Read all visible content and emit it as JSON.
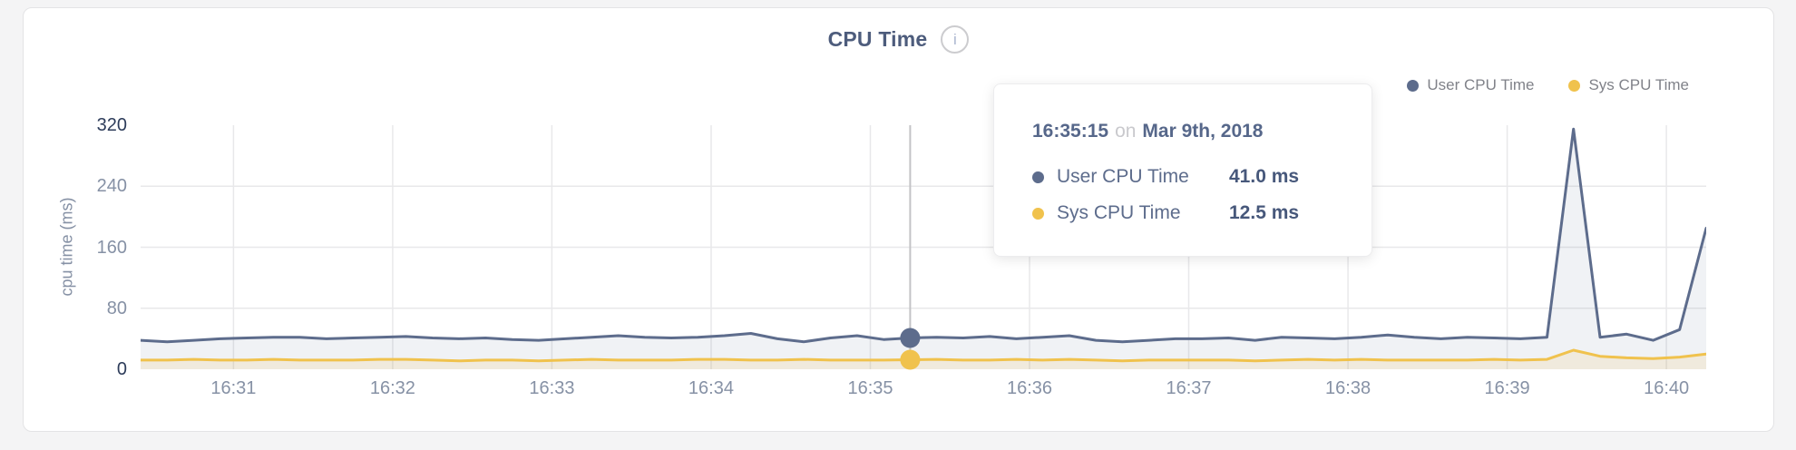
{
  "header": {
    "title": "CPU Time",
    "info_icon_glyph": "i"
  },
  "tooltip": {
    "time": "16:35:15",
    "connector": "on",
    "date": "Mar 9th, 2018",
    "rows": [
      {
        "label": "User CPU Time",
        "value": "41.0 ms",
        "color": "#5d6c8c"
      },
      {
        "label": "Sys CPU Time",
        "value": "12.5 ms",
        "color": "#f0c24d"
      }
    ]
  },
  "colors": {
    "user_series": "#5d6c8c",
    "sys_series": "#f0c24d",
    "grid": "#e8e8ea",
    "crosshair": "#c3c3c6",
    "axis_major": "#2d3c5a",
    "axis_minor": "#8691a5"
  },
  "chart_data": {
    "type": "area",
    "title": "CPU Time",
    "xlabel": "",
    "ylabel": "cpu time (ms)",
    "ylim": [
      0,
      320
    ],
    "yticks": [
      0,
      80,
      160,
      240,
      320
    ],
    "grid": true,
    "legend_position": "top-right",
    "x_start": "16:30:25",
    "x_interval_seconds": 10,
    "x_tick_labels": [
      "16:31",
      "16:32",
      "16:33",
      "16:34",
      "16:35",
      "16:36",
      "16:37",
      "16:38",
      "16:39",
      "16:40"
    ],
    "date": "Mar 9th, 2018",
    "series": [
      {
        "name": "User CPU Time",
        "color": "#5d6c8c",
        "fill": "rgba(93,108,140,0.09)",
        "values": [
          38,
          36,
          38,
          40,
          41,
          42,
          42,
          40,
          41,
          42,
          43,
          41,
          40,
          41,
          39,
          38,
          40,
          42,
          44,
          42,
          41,
          42,
          44,
          47,
          40,
          36,
          41,
          44,
          39,
          41,
          42,
          41,
          43,
          40,
          42,
          44,
          38,
          36,
          38,
          40,
          40,
          41,
          38,
          42,
          41,
          40,
          42,
          45,
          42,
          40,
          42,
          41,
          40,
          42,
          315,
          42,
          46,
          38,
          52,
          185
        ]
      },
      {
        "name": "Sys CPU Time",
        "color": "#f0c24d",
        "fill": "rgba(240,194,77,0.14)",
        "values": [
          12,
          12,
          13,
          12,
          12,
          13,
          12,
          12,
          12,
          13,
          13,
          12,
          11,
          12,
          12,
          11,
          12,
          13,
          12,
          12,
          12,
          13,
          13,
          12,
          12,
          13,
          12,
          12,
          12,
          12.5,
          13,
          12,
          12,
          13,
          12,
          13,
          12,
          11,
          12,
          12,
          12,
          12,
          11,
          12,
          13,
          12,
          13,
          12,
          12,
          12,
          12,
          13,
          12,
          13,
          25,
          17,
          15,
          14,
          16,
          20
        ]
      }
    ],
    "hover": {
      "time": "16:35:15",
      "index": 29,
      "values": {
        "User CPU Time": 41.0,
        "Sys CPU Time": 12.5
      }
    }
  }
}
